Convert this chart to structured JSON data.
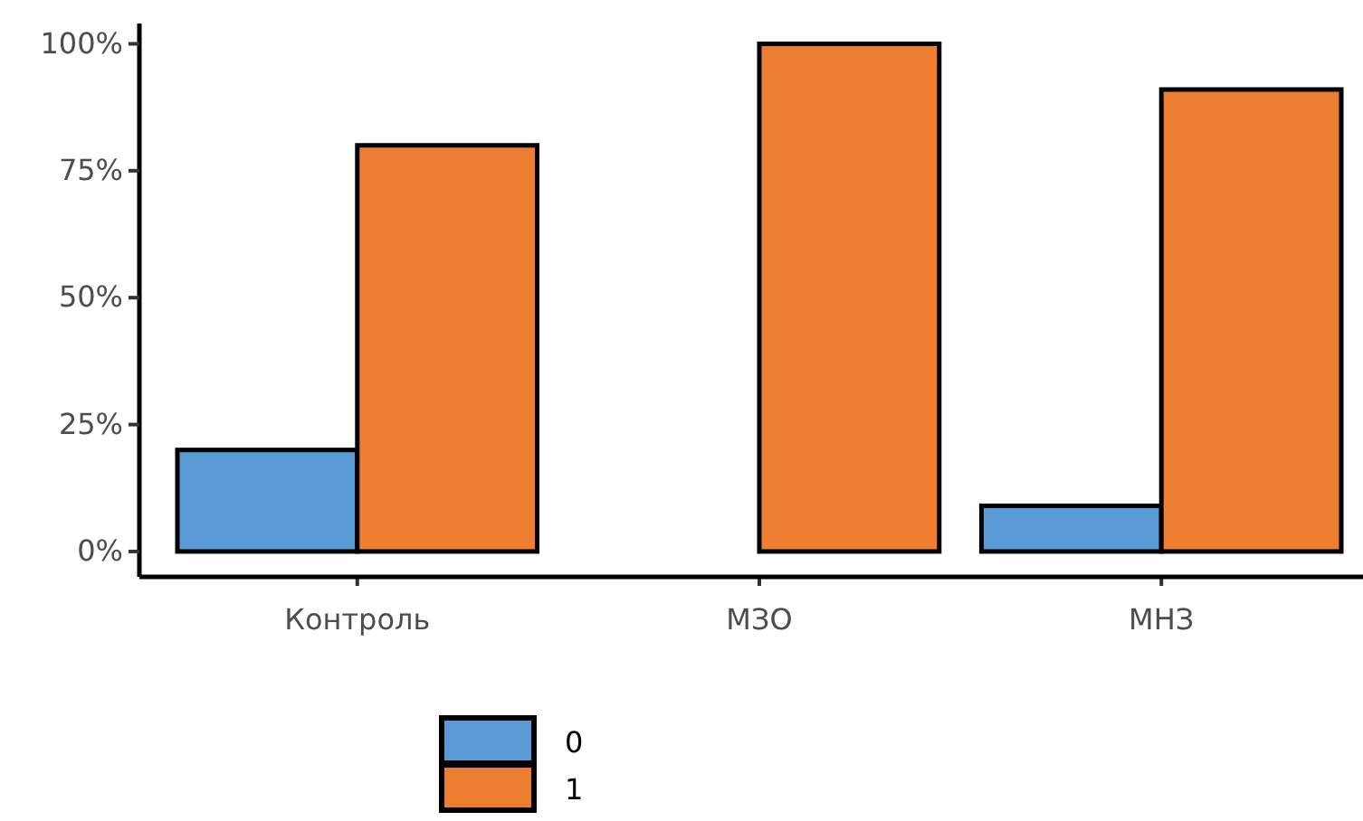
{
  "chart_data": {
    "type": "bar",
    "categories": [
      "Контроль",
      "МЗО",
      "МНЗ"
    ],
    "series": [
      {
        "name": "0",
        "color": "#5b9bd5",
        "values": [
          20,
          0,
          9
        ]
      },
      {
        "name": "1",
        "color": "#ed7d31",
        "values": [
          80,
          100,
          91
        ]
      }
    ],
    "ylim": [
      -5,
      104
    ],
    "yticks": [
      {
        "value": 0,
        "label": "0%"
      },
      {
        "value": 25,
        "label": "25%"
      },
      {
        "value": 50,
        "label": "50%"
      },
      {
        "value": 75,
        "label": "75%"
      },
      {
        "value": 100,
        "label": "100%"
      }
    ],
    "grid": false,
    "legend": "bottom"
  }
}
